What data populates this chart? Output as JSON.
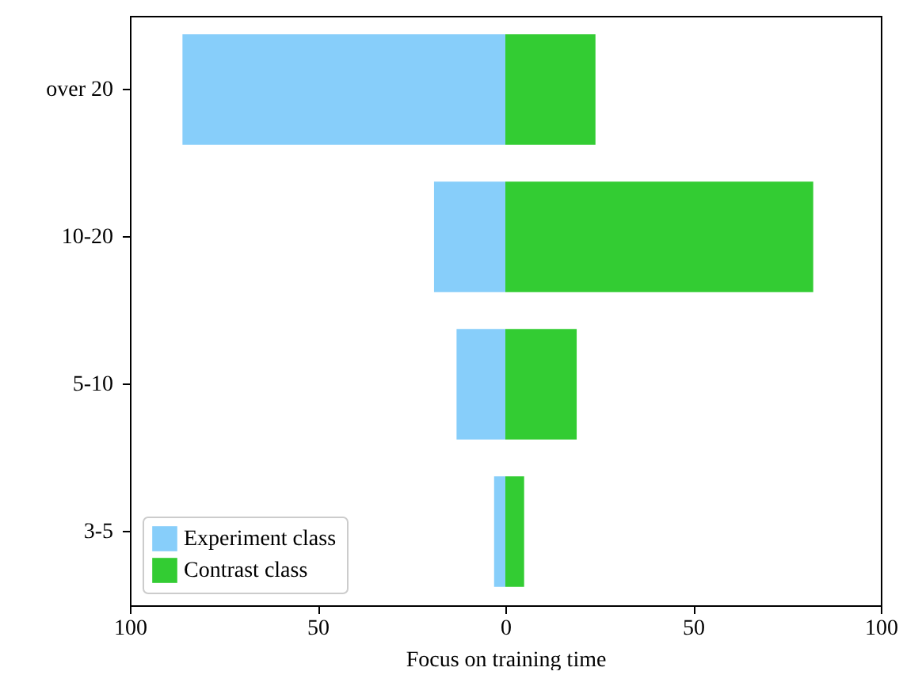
{
  "chart_data": {
    "type": "bar",
    "orientation": "horizontal",
    "stacked": true,
    "xlabel": "Focus on training time",
    "categories": [
      "over 20",
      "10-20",
      "5-10",
      "3-5"
    ],
    "series": [
      {
        "name": "Experiment class",
        "color": "#87cefa",
        "values": [
          -86,
          -19,
          -13,
          -3
        ]
      },
      {
        "name": "Contrast class",
        "color": "#33cc33",
        "values": [
          24,
          82,
          19,
          5
        ]
      }
    ],
    "xlim": [
      -100,
      100
    ],
    "xticks": [
      {
        "value": -100,
        "label": "100"
      },
      {
        "value": -50,
        "label": "50"
      },
      0,
      {
        "value": 50,
        "label": "50"
      },
      100
    ],
    "legend": "bottom left",
    "grid": false
  }
}
